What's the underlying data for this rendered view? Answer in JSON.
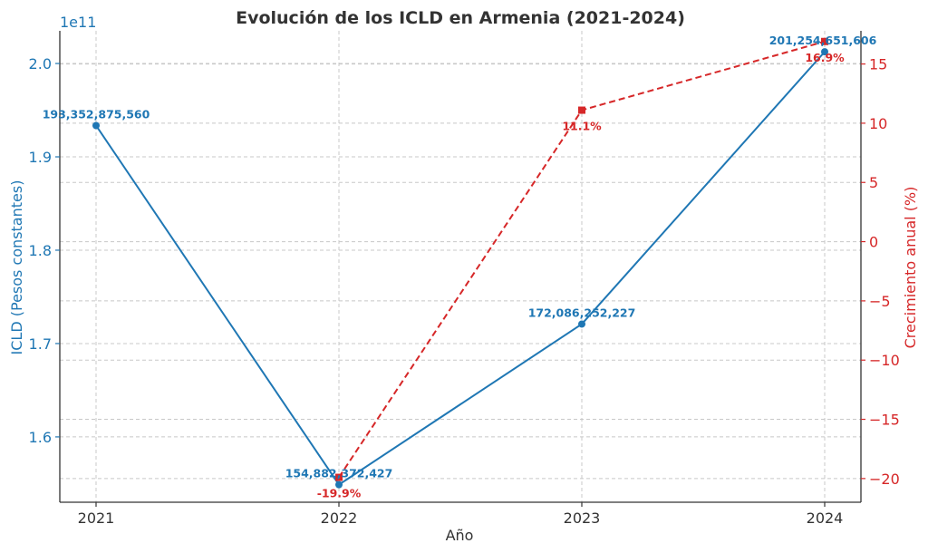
{
  "chart_data": {
    "type": "line",
    "title": "Evolución de los ICLD en Armenia (2021-2024)",
    "xlabel": "Año",
    "categories": [
      "2021",
      "2022",
      "2023",
      "2024"
    ],
    "colors": {
      "left": "#1f77b4",
      "right": "#d62728",
      "text": "#333333"
    },
    "left_axis": {
      "label": "ICLD (Pesos constantes)",
      "offset_text": "1e11",
      "ylim": [
        1.53,
        2.035
      ],
      "ticks": [
        1.6,
        1.7,
        1.8,
        1.9,
        2.0
      ],
      "tick_labels": [
        "1.6",
        "1.7",
        "1.8",
        "1.9",
        "2.0"
      ]
    },
    "right_axis": {
      "label": "Crecimiento anual (%)",
      "ylim": [
        -22,
        17.8
      ],
      "ticks": [
        -20,
        -15,
        -10,
        -5,
        0,
        5,
        10,
        15
      ],
      "tick_labels": [
        "−20",
        "−15",
        "−10",
        "−5",
        "0",
        "5",
        "10",
        "15"
      ]
    },
    "series": [
      {
        "axis": "left",
        "style": "solid",
        "marker": "circle",
        "values": [
          1.9335287556,
          1.5488237243,
          1.7208625223,
          2.0125465161
        ],
        "labels": [
          "193,352,875,560",
          "154,882,372,427",
          "172,086,252,227",
          "201,254,651,606"
        ]
      },
      {
        "axis": "right",
        "style": "dashed",
        "marker": "square",
        "x": [
          "2022",
          "2023",
          "2024"
        ],
        "values": [
          -19.9,
          11.1,
          16.9
        ],
        "labels": [
          "-19.9%",
          "11.1%",
          "16.9%"
        ]
      }
    ],
    "grid": true
  }
}
